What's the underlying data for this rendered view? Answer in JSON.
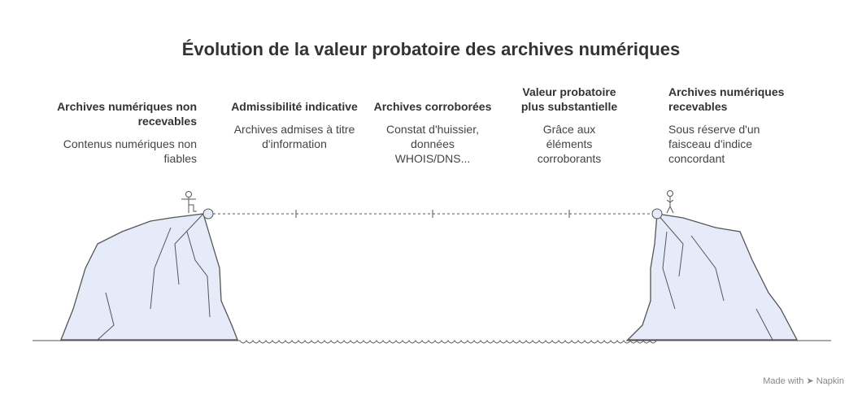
{
  "title": "Évolution de la valeur probatoire des archives numériques",
  "steps": [
    {
      "heading": "Archives numériques non recevables",
      "description": "Contenus numériques non fiables"
    },
    {
      "heading": "Admissibilité indicative",
      "description": "Archives admises à titre d'information"
    },
    {
      "heading": "Archives corroborées",
      "description": "Constat d'huissier, données WHOIS/DNS..."
    },
    {
      "heading": "Valeur probatoire plus substantielle",
      "description": "Grâce aux éléments corroborants"
    },
    {
      "heading": "Archives numériques recevables",
      "description": "Sous réserve d'un faisceau d'indice concordant"
    }
  ],
  "colors": {
    "cliff": "#e6ebfa",
    "stroke": "#555555"
  },
  "footer": {
    "made_with": "Made with",
    "brand": "Napkin"
  }
}
